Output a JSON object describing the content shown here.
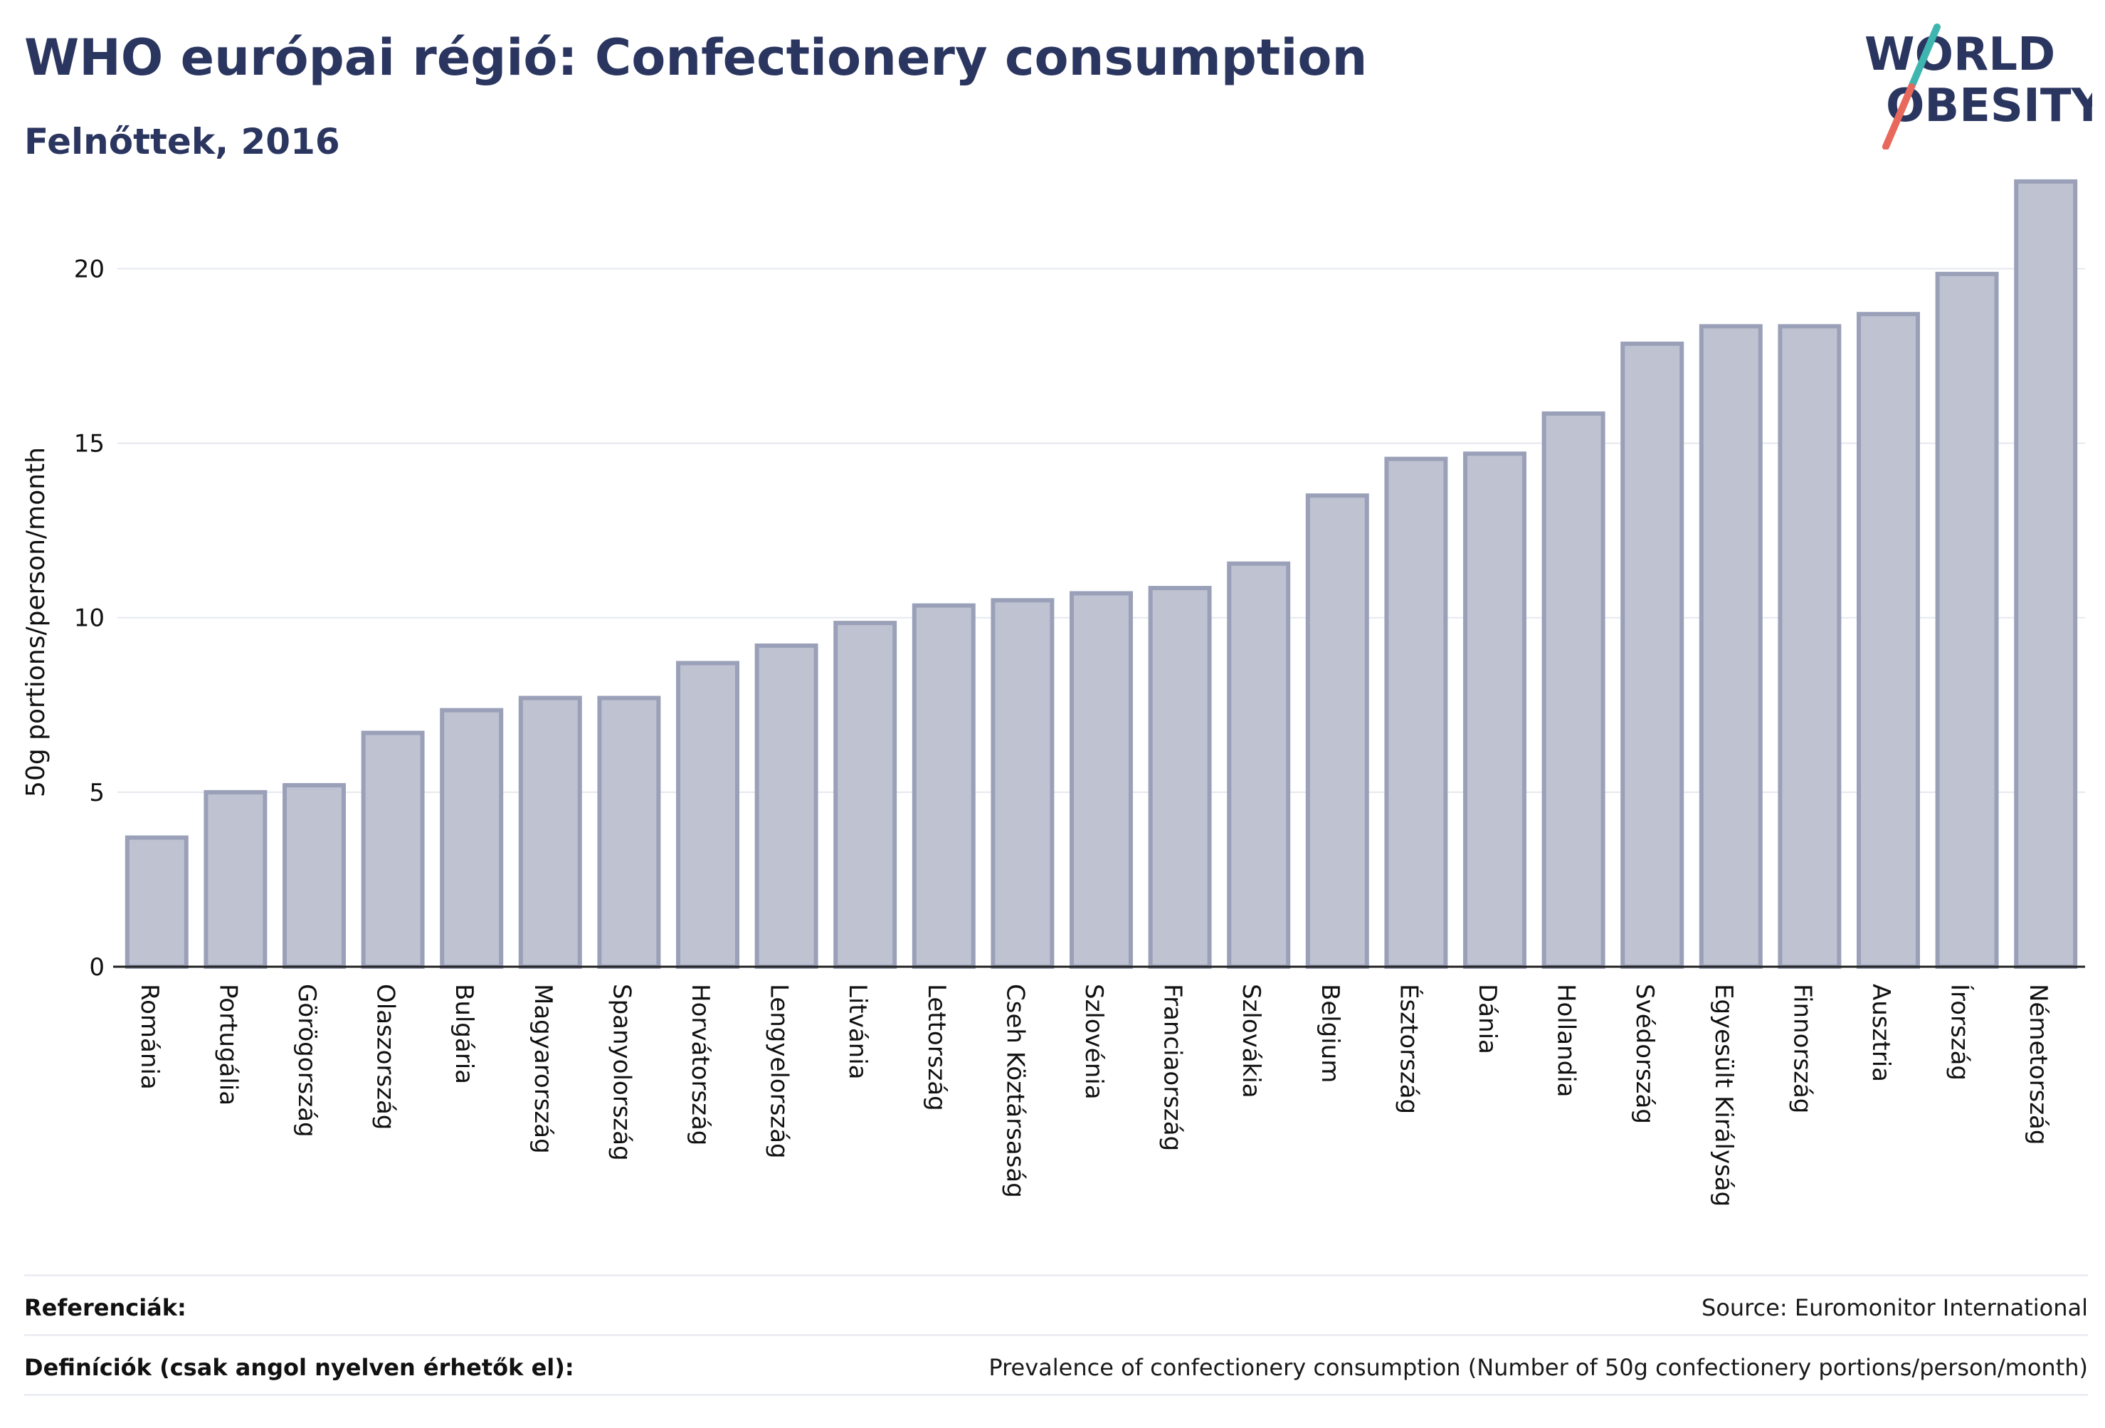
{
  "header": {
    "title": "WHO európai régió: Confectionery consumption",
    "subtitle": "Felnőttek, 2016"
  },
  "logo": {
    "text_line1": "WORLD",
    "text_line2": "OBESITY",
    "colors": {
      "text": "#2b3660",
      "slash_top": "#3fb5b0",
      "slash_bottom": "#e8685c"
    }
  },
  "colors": {
    "bar_fill": "#bfc2d1",
    "bar_stroke": "#9aa0b8",
    "text": "#2b3660",
    "grid": "#e6e8ef",
    "axis": "#222222"
  },
  "chart_data": {
    "type": "bar",
    "title": "WHO európai régió: Confectionery consumption",
    "subtitle": "Felnőttek, 2016",
    "xlabel": "",
    "ylabel": "50g portions/person/month",
    "ylim": [
      0,
      22.6
    ],
    "yticks": [
      0,
      5,
      10,
      15,
      20
    ],
    "grid": true,
    "categories": [
      "Románia",
      "Portugália",
      "Görögország",
      "Olaszország",
      "Bulgária",
      "Magyarország",
      "Spanyolország",
      "Horvátország",
      "Lengyelország",
      "Litvánia",
      "Lettország",
      "Cseh Köztársaság",
      "Szlovénia",
      "Franciaország",
      "Szlovákia",
      "Belgium",
      "Észtország",
      "Dánia",
      "Hollandia",
      "Svédország",
      "Egyesült Királyság",
      "Finnország",
      "Ausztria",
      "Írország",
      "Németország"
    ],
    "values": [
      3.7,
      5.0,
      5.2,
      6.7,
      7.35,
      7.7,
      7.7,
      8.7,
      9.2,
      9.85,
      10.35,
      10.5,
      10.7,
      10.85,
      11.55,
      13.5,
      14.55,
      14.7,
      15.85,
      17.85,
      18.35,
      18.35,
      18.7,
      19.85,
      22.5
    ]
  },
  "footer": {
    "references_label": "Referenciák:",
    "references_value": "Source: Euromonitor International",
    "definitions_label": "Definíciók (csak angol nyelven érhetők el):",
    "definitions_value": "Prevalence of confectionery consumption (Number of 50g confectionery portions/person/month)"
  }
}
